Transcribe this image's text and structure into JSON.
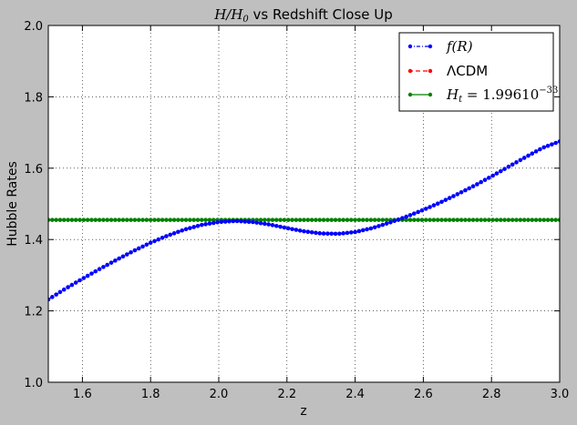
{
  "chart_data": {
    "type": "line",
    "title_math": "H/H",
    "title_math_sub": "0",
    "title_rest": " vs Redshift Close Up",
    "xlabel": "z",
    "ylabel": "Hubble Rates",
    "xlim": [
      1.5,
      3.0
    ],
    "ylim": [
      1.0,
      2.0
    ],
    "xticks": [
      1.6,
      1.8,
      2.0,
      2.2,
      2.4,
      2.6,
      2.8,
      3.0
    ],
    "xtick_labels": [
      "1.6",
      "1.8",
      "2.0",
      "2.2",
      "2.4",
      "2.6",
      "2.8",
      "3.0"
    ],
    "yticks": [
      1.0,
      1.2,
      1.4,
      1.6,
      1.8,
      2.0
    ],
    "ytick_labels": [
      "1.0",
      "1.2",
      "1.4",
      "1.6",
      "1.8",
      "2.0"
    ],
    "grid": true,
    "legend_position": "top-right",
    "series": [
      {
        "name": "f(R)",
        "color": "#0000ff",
        "style": "dash-dot",
        "marker": "dot",
        "x": [
          1.5,
          1.55,
          1.6,
          1.65,
          1.7,
          1.75,
          1.8,
          1.85,
          1.9,
          1.95,
          2.0,
          2.05,
          2.1,
          2.15,
          2.2,
          2.25,
          2.3,
          2.35,
          2.4,
          2.45,
          2.5,
          2.55,
          2.6,
          2.65,
          2.7,
          2.75,
          2.8,
          2.85,
          2.9,
          2.95,
          3.0
        ],
        "y": [
          1.232,
          1.262,
          1.29,
          1.317,
          1.343,
          1.368,
          1.391,
          1.411,
          1.428,
          1.441,
          1.449,
          1.452,
          1.449,
          1.442,
          1.432,
          1.423,
          1.417,
          1.416,
          1.421,
          1.432,
          1.447,
          1.464,
          1.483,
          1.504,
          1.527,
          1.551,
          1.577,
          1.604,
          1.631,
          1.657,
          1.675
        ]
      },
      {
        "name": "ΛCDM",
        "color": "#ff0000",
        "style": "dashed",
        "marker": "dot",
        "x": [],
        "y": []
      },
      {
        "name": "H_t = 1.99610^{-33}",
        "legend_main": "H",
        "legend_sub": "t",
        "legend_eq": " = 1.99610",
        "legend_sup": "−33",
        "color": "#008000",
        "style": "solid",
        "marker": "dot",
        "constant": 1.455,
        "x": [
          1.5,
          3.0
        ],
        "y": [
          1.455,
          1.455
        ]
      }
    ]
  }
}
